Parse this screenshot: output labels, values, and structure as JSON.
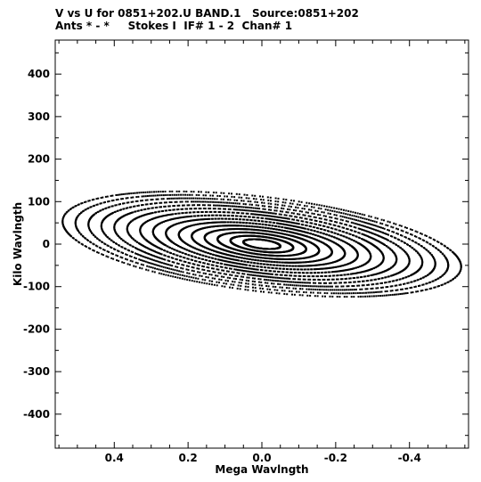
{
  "header": {
    "line1": "V vs U for 0851+202.U BAND.1   Source:0851+202",
    "line2": "Ants * - *     Stokes I  IF# 1 - 2  Chan# 1"
  },
  "chart_data": {
    "type": "scatter",
    "title": "V vs U for 0851+202.U BAND.1   Source:0851+202",
    "subtitle": "Ants * - *     Stokes I  IF# 1 - 2  Chan# 1",
    "xlabel": "Mega Wavlngth",
    "ylabel": "Kilo Wavlngth",
    "x_reversed": true,
    "xlim": [
      0.56,
      -0.56
    ],
    "ylim": [
      -480,
      480
    ],
    "x_ticks": [
      0.4,
      0.2,
      0.0,
      -0.2,
      -0.4
    ],
    "x_tick_labels": [
      "0.4",
      "0.2",
      "0.0",
      "-0.2",
      "-0.4"
    ],
    "y_ticks": [
      400,
      300,
      200,
      100,
      0,
      -100,
      -200,
      -300,
      -400
    ],
    "y_tick_labels": [
      "400",
      "300",
      "200",
      "100",
      "0",
      "-100",
      "-200",
      "-300",
      "-400"
    ],
    "grid": false,
    "legend": "none",
    "marker_color": "#000000",
    "uv_tracks": {
      "description": "uv-coverage: each baseline traces an elliptical arc; conjugate points (-u,-v) are also plotted",
      "v_over_u_ratio_kilo_per_mega": 0.6,
      "baselines_mega_wavelength": [
        0.05,
        0.085,
        0.12,
        0.155,
        0.19,
        0.225,
        0.26,
        0.295,
        0.33,
        0.365,
        0.4,
        0.435,
        0.47,
        0.505,
        0.54
      ],
      "hour_angle_range_hours": [
        -4.5,
        4.5
      ],
      "hour_angle_step_hours": 0.15
    }
  }
}
